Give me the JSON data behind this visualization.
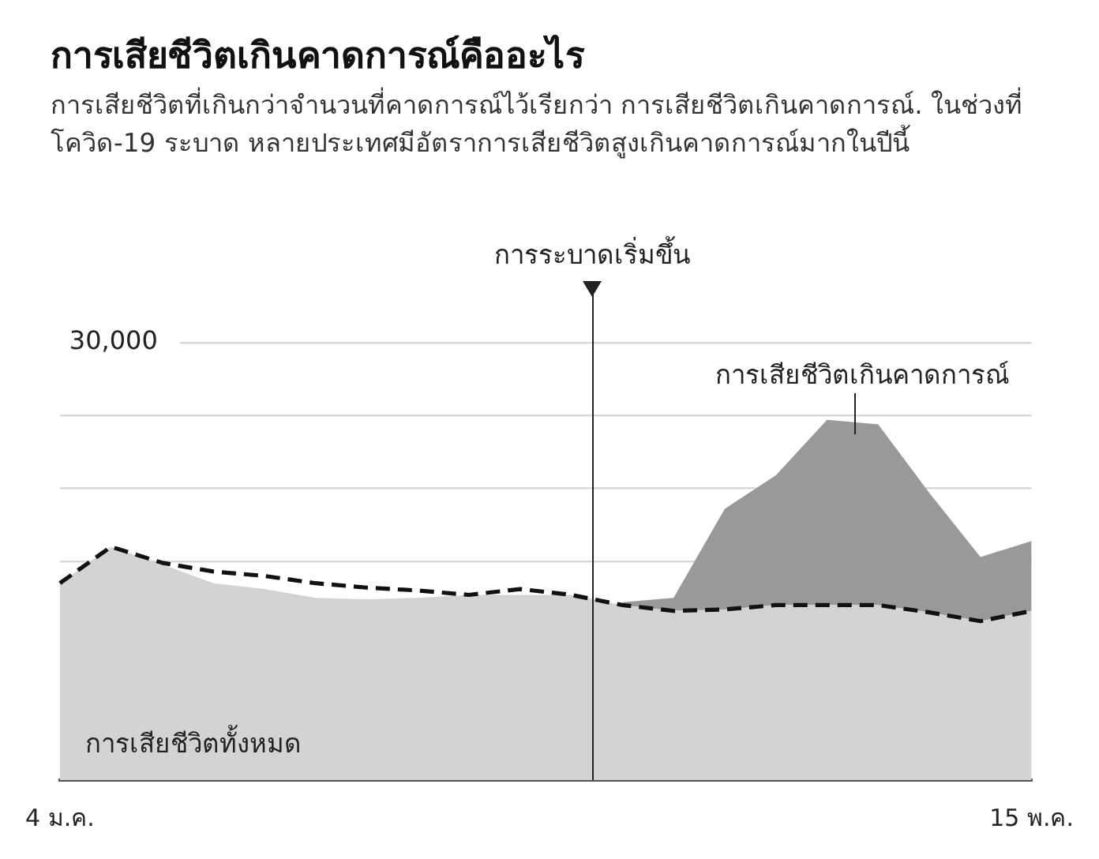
{
  "chart_data": {
    "type": "area",
    "title": "การเสียชีวิตเกินคาดการณ์คืออะไร",
    "subtitle": "การเสียชีวิตที่เกินกว่าจำนวนที่คาดการณ์ไว้เรียกว่า การเสียชีวิตเกินคาดการณ์. ในช่วงที่โควิด-19 ระบาด หลายประเทศมีอัตราการเสียชีวิตสูงเกินคาดการณ์มากในปีนี้",
    "categories": [
      "4 ม.ค.",
      null,
      null,
      null,
      null,
      null,
      null,
      null,
      null,
      null,
      null,
      null,
      null,
      null,
      null,
      null,
      null,
      null,
      null,
      "15 พ.ค."
    ],
    "ylim": [
      0,
      30000
    ],
    "yticks": [
      {
        "value": 15000,
        "label": null
      },
      {
        "value": 20000,
        "label": null
      },
      {
        "value": 25000,
        "label": null
      },
      {
        "value": 30000,
        "label": "30,000"
      }
    ],
    "grid": "y",
    "stacked": true,
    "legend": false,
    "series": [
      {
        "name": "การเสียชีวิตทั้งหมด",
        "type": "area",
        "color": "#d3d3d3",
        "values": [
          13500,
          16000,
          14800,
          13500,
          13100,
          12500,
          12400,
          12500,
          12700,
          12700,
          12700,
          12000,
          11600,
          11700,
          12000,
          12000,
          12000,
          11500,
          10900,
          11600
        ]
      },
      {
        "name": "การเสียชีวิตเกินคาดการณ์",
        "type": "area",
        "color": "#999999",
        "values": [
          null,
          null,
          null,
          null,
          null,
          null,
          null,
          null,
          null,
          null,
          null,
          200,
          900,
          6900,
          8900,
          12700,
          12400,
          8200,
          4400,
          4800
        ]
      },
      {
        "type": "line",
        "color": "#111111",
        "line_style": "dashed",
        "values": [
          13500,
          16000,
          14900,
          14300,
          14000,
          13500,
          13200,
          13000,
          12700,
          13100,
          12700,
          12000,
          11600,
          11700,
          12000,
          12000,
          12000,
          11500,
          10900,
          11600
        ]
      }
    ],
    "annotations": [
      "การระบาดเริ่มขึ้น"
    ]
  }
}
